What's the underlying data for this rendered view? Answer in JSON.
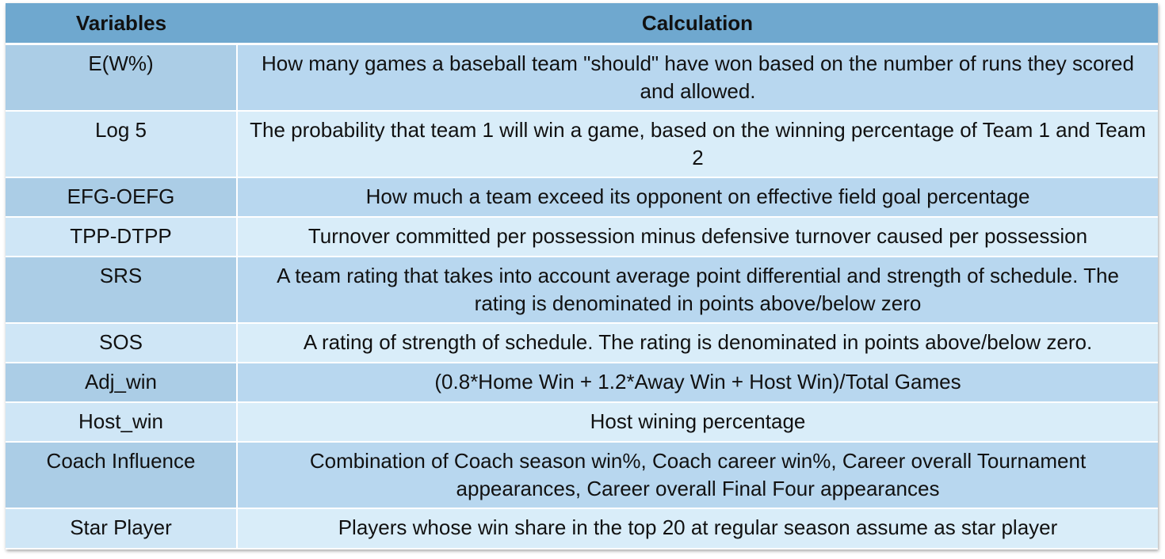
{
  "table": {
    "headers": [
      "Variables",
      "Calculation"
    ],
    "rows": [
      {
        "variable": "E(W%)",
        "calculation": "How many games a baseball team \"should\" have won based on the number of runs they scored and allowed."
      },
      {
        "variable": "Log 5",
        "calculation": "The probability that team 1 will win a game, based on the winning percentage of Team 1 and Team 2"
      },
      {
        "variable": "EFG-OEFG",
        "calculation": "How much a team exceed its opponent on effective field goal percentage"
      },
      {
        "variable": "TPP-DTPP",
        "calculation": "Turnover committed per possession minus defensive turnover caused per possession"
      },
      {
        "variable": "SRS",
        "calculation": "A team rating that takes into account average point differential and strength of schedule. The rating is denominated in points above/below zero"
      },
      {
        "variable": "SOS",
        "calculation": "A rating of strength of schedule. The  rating is denominated in points above/below zero."
      },
      {
        "variable": "Adj_win",
        "calculation": "(0.8*Home Win + 1.2*Away Win + Host Win)/Total Games"
      },
      {
        "variable": "Host_win",
        "calculation": "Host wining percentage"
      },
      {
        "variable": "Coach Influence",
        "calculation": "Combination of Coach season win%, Coach career win%, Career overall Tournament appearances, Career overall Final Four appearances"
      },
      {
        "variable": "Star Player",
        "calculation": "Players whose win share in the top 20 at regular season assume as star player"
      }
    ]
  }
}
